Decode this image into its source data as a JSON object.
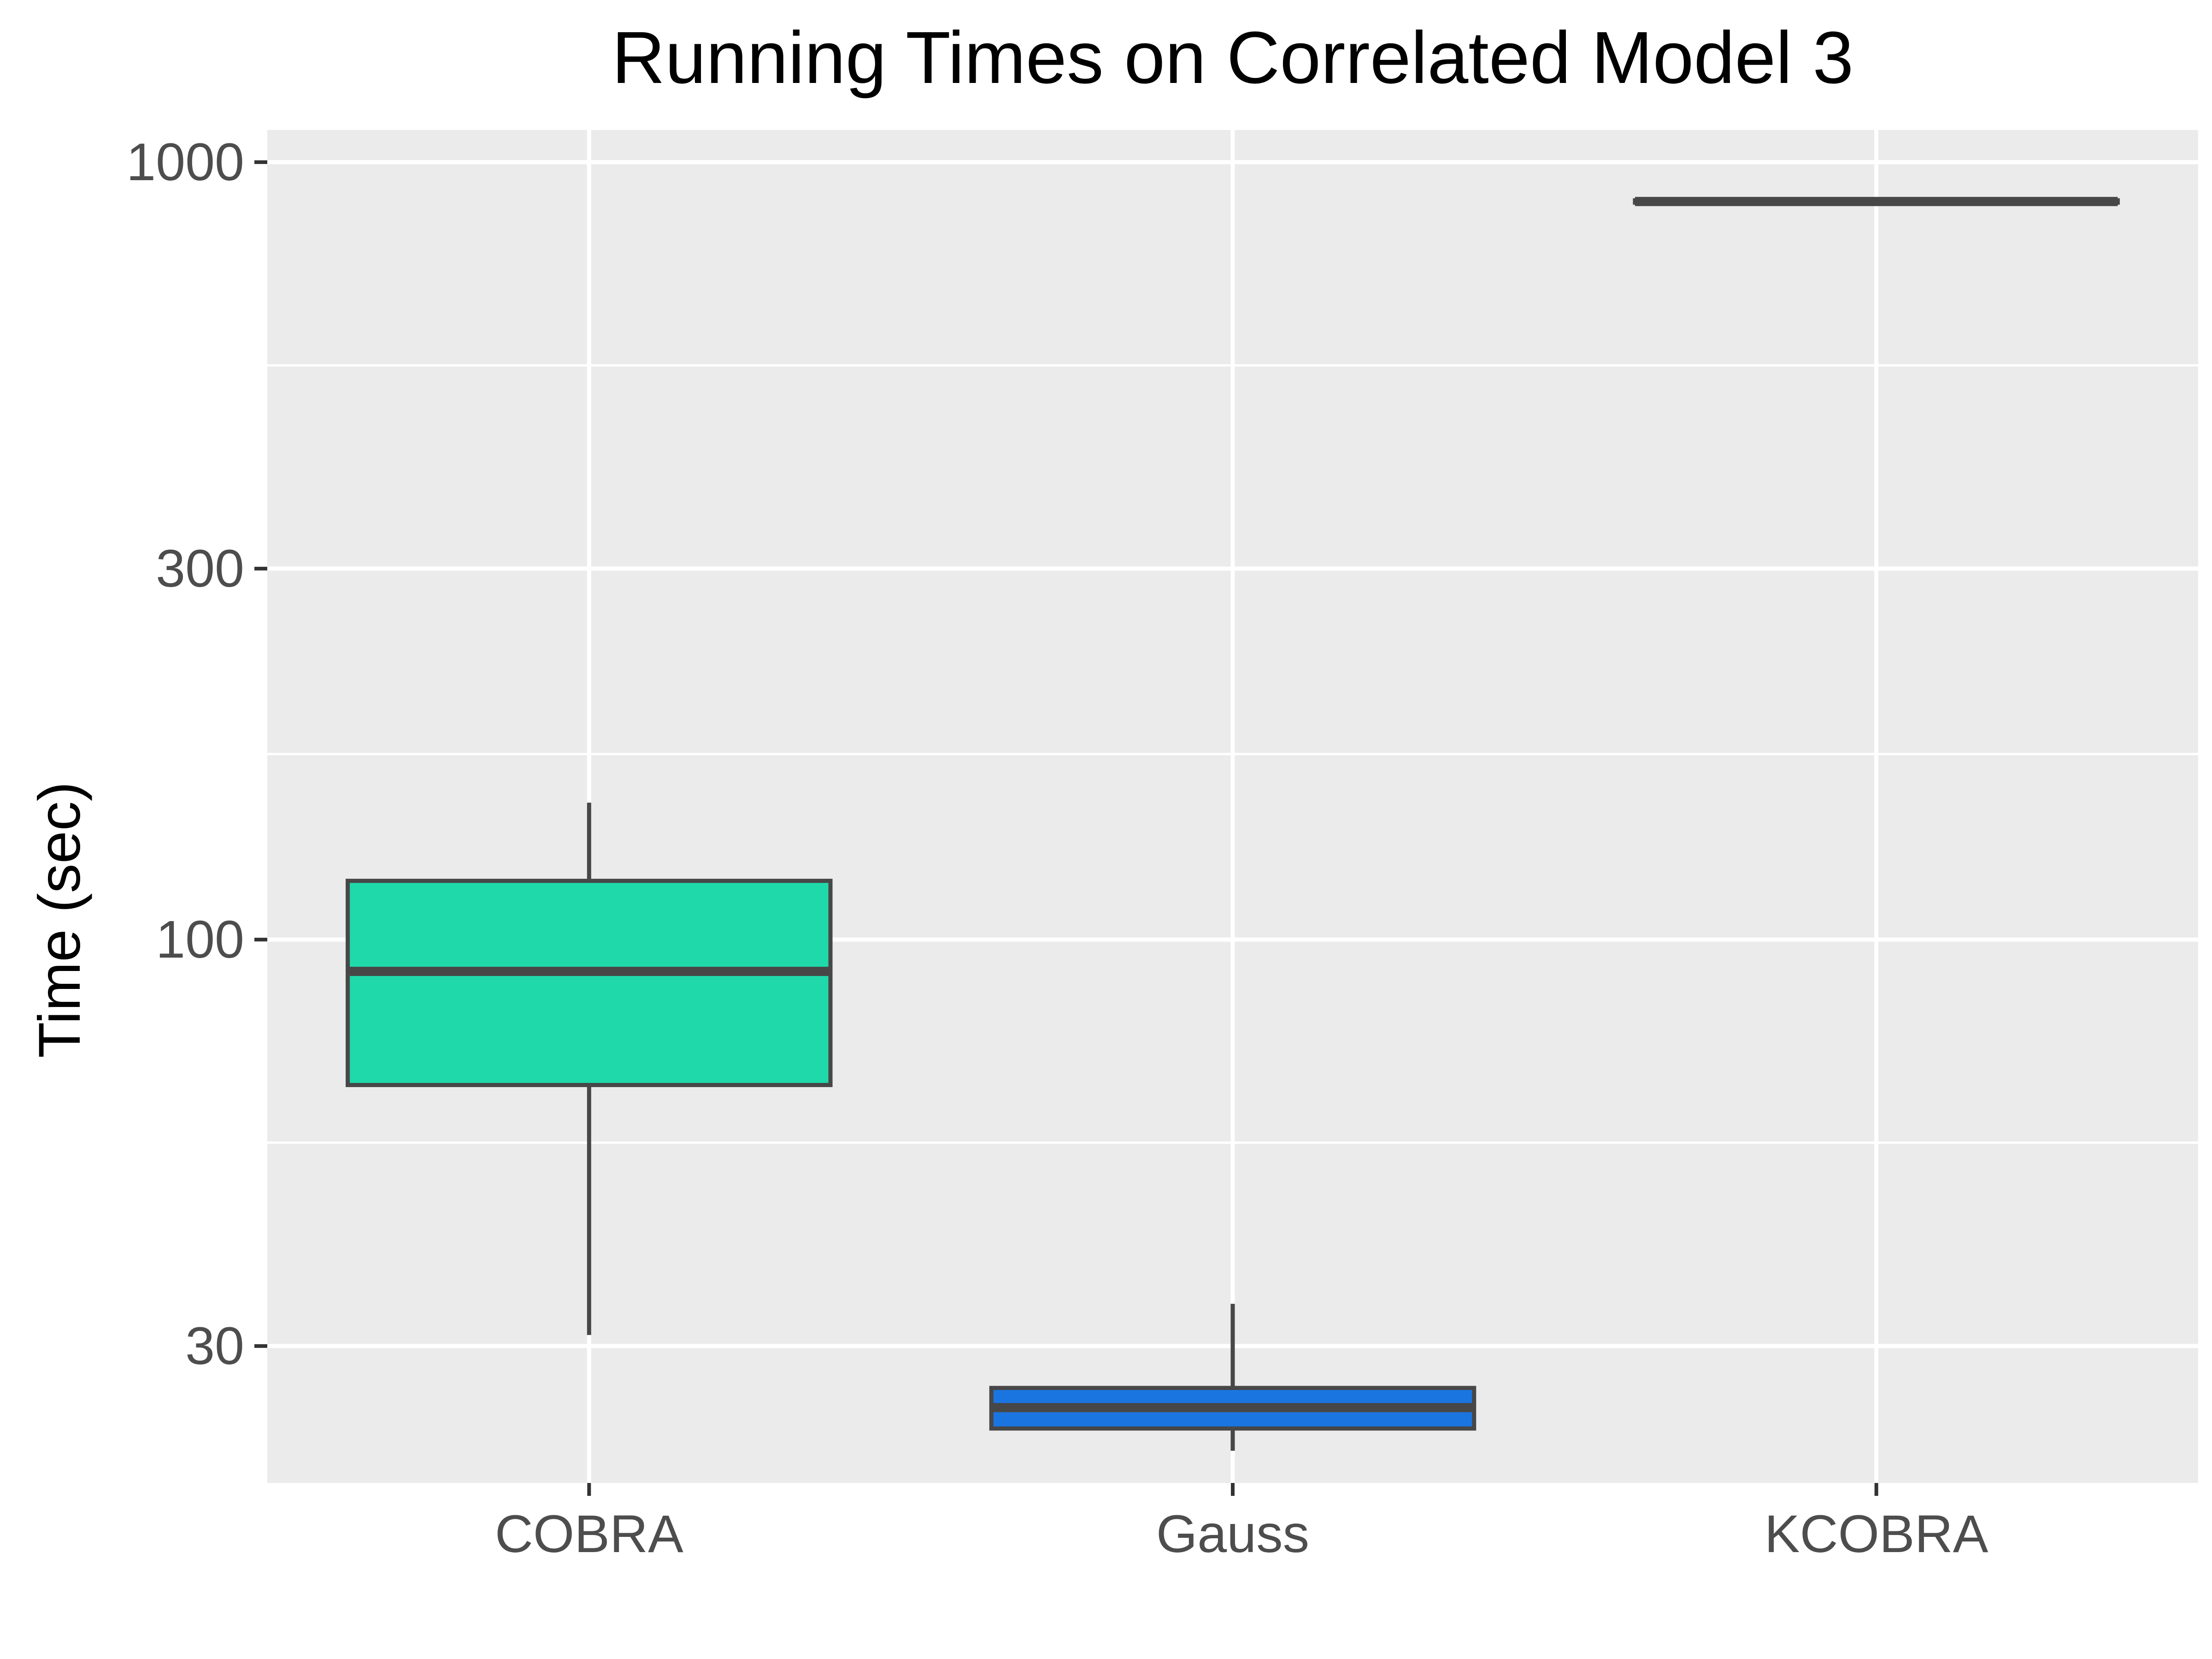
{
  "chart_data": {
    "type": "boxplot",
    "title": "Running Times on Correlated Model 3",
    "xlabel": "",
    "ylabel": "Time (sec)",
    "y_scale": "log10",
    "ylim": [
      20,
      1100
    ],
    "y_ticks": [
      30,
      100,
      300,
      1000
    ],
    "y_tick_labels": [
      "30",
      "100",
      "300",
      "1000"
    ],
    "y_minor_ticks": [
      54.8,
      173.2,
      547.7
    ],
    "grid": true,
    "legend": "none",
    "categories": [
      "COBRA",
      "Gauss",
      "KCOBRA"
    ],
    "boxes": [
      {
        "category": "COBRA",
        "whisker_low": 31,
        "q1": 65,
        "median": 91,
        "q3": 119,
        "whisker_high": 150,
        "fill": "#20d9aa"
      },
      {
        "category": "Gauss",
        "whisker_low": 22,
        "q1": 23.5,
        "median": 25,
        "q3": 26.5,
        "whisker_high": 34,
        "fill": "#1a75e0"
      },
      {
        "category": "KCOBRA",
        "whisker_low": 885,
        "q1": 887,
        "median": 890,
        "q3": 893,
        "whisker_high": 896,
        "fill": "#bcd6bf"
      }
    ],
    "colors": {
      "panel": "#ebebeb",
      "grid": "#ffffff",
      "box_outline": "#474747",
      "tick_label": "#4d4d4d",
      "axis_tick": "#333333"
    }
  }
}
